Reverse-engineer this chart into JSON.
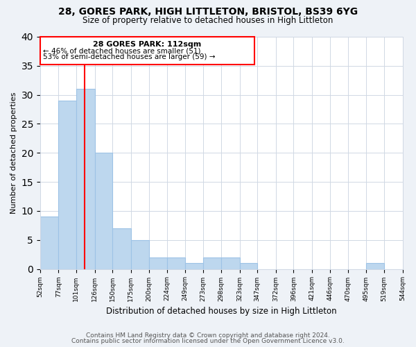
{
  "title1": "28, GORES PARK, HIGH LITTLETON, BRISTOL, BS39 6YG",
  "title2": "Size of property relative to detached houses in High Littleton",
  "xlabel": "Distribution of detached houses by size in High Littleton",
  "ylabel": "Number of detached properties",
  "bar_color": "#bdd7ee",
  "bar_edge_color": "#9dc3e6",
  "bins": [
    52,
    77,
    101,
    126,
    150,
    175,
    200,
    224,
    249,
    273,
    298,
    323,
    347,
    372,
    396,
    421,
    446,
    470,
    495,
    519,
    544
  ],
  "counts": [
    9,
    29,
    31,
    20,
    7,
    5,
    2,
    2,
    1,
    2,
    2,
    1,
    0,
    0,
    0,
    0,
    0,
    0,
    1,
    0
  ],
  "tick_labels": [
    "52sqm",
    "77sqm",
    "101sqm",
    "126sqm",
    "150sqm",
    "175sqm",
    "200sqm",
    "224sqm",
    "249sqm",
    "273sqm",
    "298sqm",
    "323sqm",
    "347sqm",
    "372sqm",
    "396sqm",
    "421sqm",
    "446sqm",
    "470sqm",
    "495sqm",
    "519sqm",
    "544sqm"
  ],
  "red_line_x": 112,
  "annotation_text1": "28 GORES PARK: 112sqm",
  "annotation_text2": "← 46% of detached houses are smaller (51)",
  "annotation_text3": "53% of semi-detached houses are larger (59) →",
  "ylim": [
    0,
    40
  ],
  "yticks": [
    0,
    5,
    10,
    15,
    20,
    25,
    30,
    35,
    40
  ],
  "footer1": "Contains HM Land Registry data © Crown copyright and database right 2024.",
  "footer2": "Contains public sector information licensed under the Open Government Licence v3.0.",
  "bg_color": "#eef2f7",
  "plot_bg_color": "#ffffff",
  "grid_color": "#d0d8e4"
}
